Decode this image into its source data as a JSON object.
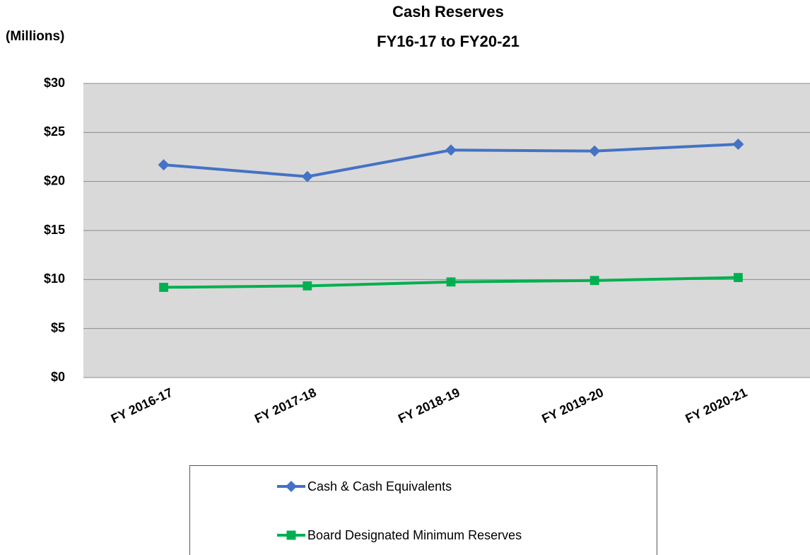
{
  "chart_data": {
    "type": "line",
    "title": "Cash Reserves",
    "subtitle": "FY16-17 to FY20-21",
    "y_label": "(Millions)",
    "categories": [
      "FY 2016-17",
      "FY 2017-18",
      "FY 2018-19",
      "FY 2019-20",
      "FY 2020-21"
    ],
    "series": [
      {
        "name": "Cash & Cash Equivalents",
        "color": "#4472c4",
        "marker": "diamond",
        "values": [
          21.7,
          20.5,
          23.2,
          23.1,
          23.8
        ]
      },
      {
        "name": "Board Designated Minimum Reserves",
        "color": "#00b050",
        "marker": "square",
        "values": [
          9.2,
          9.35,
          9.75,
          9.9,
          10.2
        ]
      }
    ],
    "ylim": [
      0,
      30
    ],
    "yticks": [
      {
        "value": 0,
        "label": "$0"
      },
      {
        "value": 5,
        "label": "$5"
      },
      {
        "value": 10,
        "label": "$10"
      },
      {
        "value": 15,
        "label": "$15"
      },
      {
        "value": 20,
        "label": "$20"
      },
      {
        "value": 25,
        "label": "$25"
      },
      {
        "value": 30,
        "label": "$30"
      }
    ],
    "grid": true,
    "legend": "bottom"
  }
}
